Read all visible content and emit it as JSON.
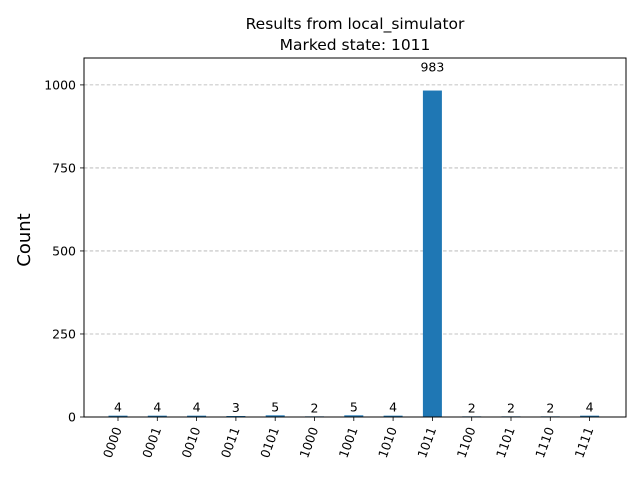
{
  "chart_data": {
    "type": "bar",
    "title": "Results from local_simulator",
    "subtitle": "Marked state: 1011",
    "xlabel": "",
    "ylabel": "Count",
    "categories": [
      "0000",
      "0001",
      "0010",
      "0011",
      "0101",
      "1000",
      "1001",
      "1010",
      "1011",
      "1100",
      "1101",
      "1110",
      "1111"
    ],
    "values": [
      4,
      4,
      4,
      3,
      5,
      2,
      5,
      4,
      983,
      2,
      2,
      2,
      4
    ],
    "ylim": [
      0,
      1081
    ],
    "yticks": [
      0,
      250,
      500,
      750,
      1000
    ],
    "grid": "y-dashed",
    "legend": "none",
    "bar_color": "#1f77b4",
    "grid_color": "#b0b0b0"
  }
}
